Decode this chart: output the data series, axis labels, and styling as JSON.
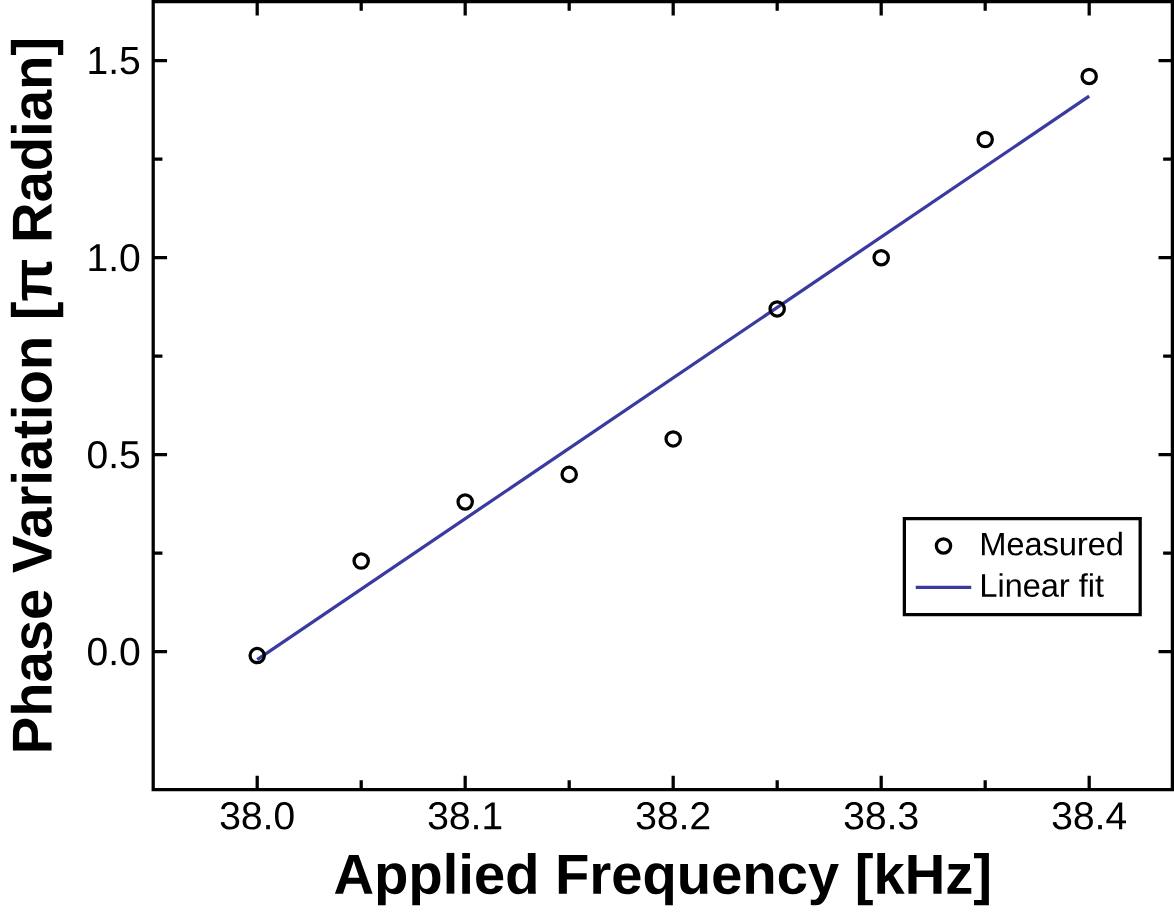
{
  "chart_data": {
    "type": "scatter",
    "xlabel": "Applied Frequency [kHz]",
    "ylabel": "Phase Variation [π Radian]",
    "xlim": [
      37.95,
      38.44
    ],
    "ylim": [
      -0.35,
      1.65
    ],
    "xticks": [
      {
        "value": 38.0,
        "label": "38.0"
      },
      38.1,
      38.2,
      38.3,
      38.4
    ],
    "yticks": [
      {
        "value": 0,
        "label": "0.0"
      },
      0.5,
      {
        "value": 1,
        "label": "1.0"
      },
      1.5
    ],
    "legend": "bottom right",
    "grid": false,
    "series": [
      {
        "name": "Measured",
        "marker": "circle",
        "color": "#000000",
        "x": [
          38.0,
          38.05,
          38.1,
          38.15,
          38.2,
          38.25,
          38.3,
          38.35,
          38.4
        ],
        "values": [
          -0.01,
          0.23,
          0.38,
          0.45,
          0.54,
          0.87,
          1.0,
          1.3,
          1.46
        ]
      },
      {
        "name": "Linear fit",
        "type": "line",
        "color": "#3a3aa0",
        "x": [
          38.0,
          38.4
        ],
        "values": [
          -0.02,
          1.41
        ]
      }
    ]
  }
}
